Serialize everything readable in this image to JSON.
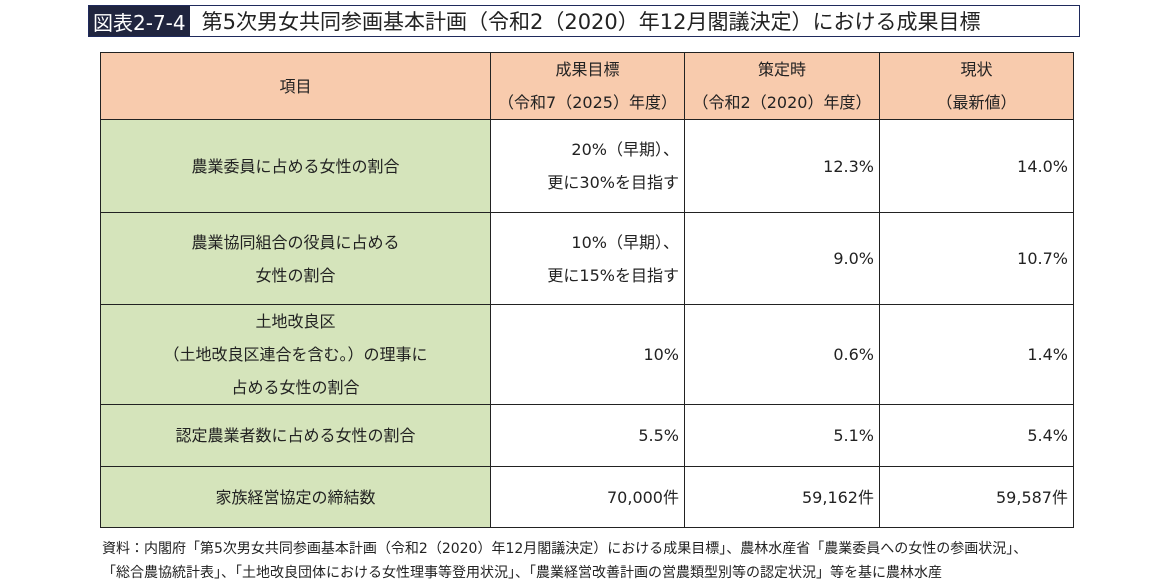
{
  "header": {
    "label": "図表2-7-4",
    "title": "第5次男女共同参画基本計画（令和2（2020）年12月閣議決定）における成果目標"
  },
  "table": {
    "columns": [
      [
        "項目"
      ],
      [
        "成果目標",
        "（令和7（2025）年度）"
      ],
      [
        "策定時",
        "（令和2（2020）年度）"
      ],
      [
        "現状",
        "（最新値）"
      ]
    ],
    "rows": [
      [
        [
          "農業委員に占める女性の割合"
        ],
        [
          "20%（早期）、",
          "更に30%を目指す"
        ],
        [
          "12.3%"
        ],
        [
          "14.0%"
        ]
      ],
      [
        [
          "農業協同組合の役員に占める",
          "女性の割合"
        ],
        [
          "10%（早期）、",
          "更に15%を目指す"
        ],
        [
          "9.0%"
        ],
        [
          "10.7%"
        ]
      ],
      [
        [
          "土地改良区",
          "（土地改良区連合を含む。）の理事に",
          "占める女性の割合"
        ],
        [
          "10%"
        ],
        [
          "0.6%"
        ],
        [
          "1.4%"
        ]
      ],
      [
        [
          "認定農業者数に占める女性の割合"
        ],
        [
          "5.5%"
        ],
        [
          "5.1%"
        ],
        [
          "5.4%"
        ]
      ],
      [
        [
          "家族経営協定の締結数"
        ],
        [
          "70,000件"
        ],
        [
          "59,162件"
        ],
        [
          "59,587件"
        ]
      ]
    ]
  },
  "source": [
    "資料：内閣府「第5次男女共同参画基本計画（令和2（2020）年12月閣議決定）における成果目標」、農林水産省「農業委員への女性の参画状況」、",
    "「総合農協統計表」、「土地改良団体における女性理事等登用状況」、「農業経営改善計画の営農類型別等の認定状況」等を基に農林水産"
  ]
}
